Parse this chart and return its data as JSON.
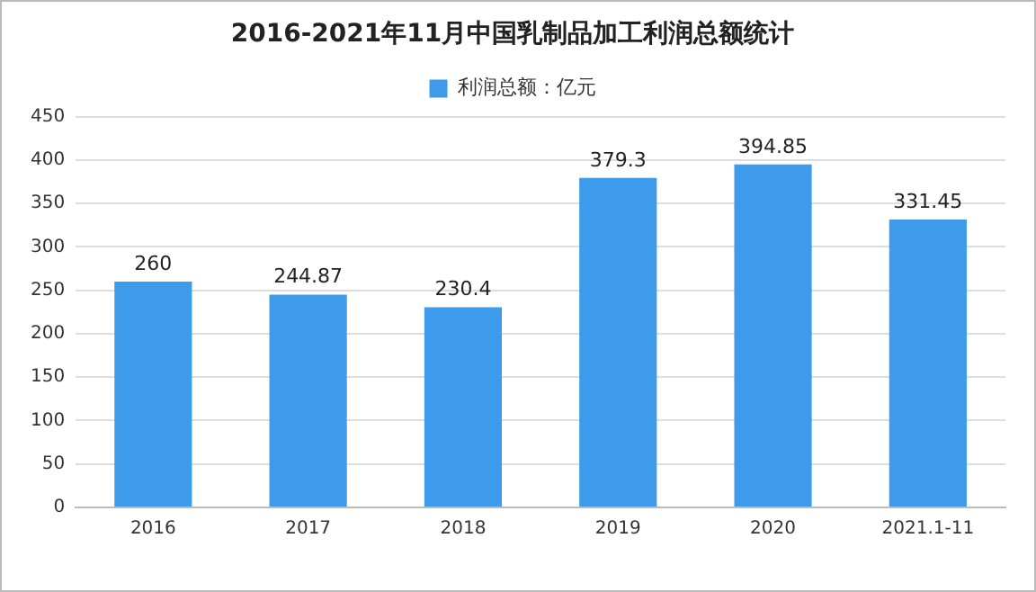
{
  "chart_data": {
    "type": "bar",
    "title": "2016-2021年11月中国乳制品加工利润总额统计",
    "categories": [
      "2016",
      "2017",
      "2018",
      "2019",
      "2020",
      "2021.1-11"
    ],
    "series": [
      {
        "name": "利润总额：亿元",
        "color": "#3e9aea",
        "values": [
          260,
          244.87,
          230.4,
          379.3,
          394.85,
          331.45
        ]
      }
    ],
    "ylim": [
      0,
      450
    ],
    "yticks": [
      0,
      50,
      100,
      150,
      200,
      250,
      300,
      350,
      400,
      450
    ],
    "grid": "y",
    "legend": "top",
    "data_labels": true
  }
}
